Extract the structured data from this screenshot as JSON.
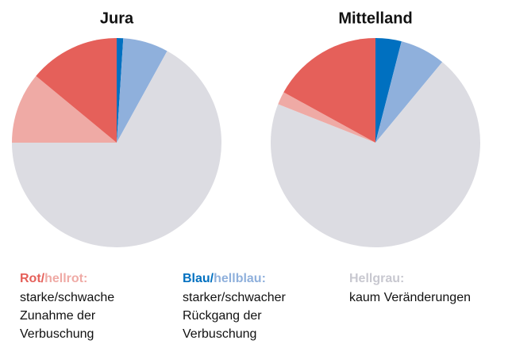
{
  "chart_data": [
    {
      "type": "pie",
      "title": "Jura",
      "values": [
        1,
        7,
        67,
        11,
        14
      ],
      "colors": [
        "#0070c0",
        "#8fb0dc",
        "#dcdce2",
        "#efaaa5",
        "#e5605a"
      ]
    },
    {
      "type": "pie",
      "title": "Mittelland",
      "values": [
        4,
        7,
        70,
        2,
        17
      ],
      "colors": [
        "#0070c0",
        "#8fb0dc",
        "#dcdce2",
        "#efaaa5",
        "#e5605a"
      ]
    }
  ],
  "legend": [
    {
      "heading": [
        {
          "text": "Rot/",
          "color": "#e5605a"
        },
        {
          "text": "hellrot:",
          "color": "#efaaa5"
        }
      ],
      "lines": [
        "starke/schwache",
        "Zunahme der",
        "Verbuschung"
      ]
    },
    {
      "heading": [
        {
          "text": "Blau/",
          "color": "#0070c0"
        },
        {
          "text": "hellblau:",
          "color": "#8fb0dc"
        }
      ],
      "lines": [
        "starker/schwacher",
        "Rückgang der",
        "Verbuschung"
      ]
    },
    {
      "heading": [
        {
          "text": "Hellgrau:",
          "color": "#c8c8d0"
        }
      ],
      "lines": [
        "kaum Veränderungen"
      ]
    }
  ]
}
